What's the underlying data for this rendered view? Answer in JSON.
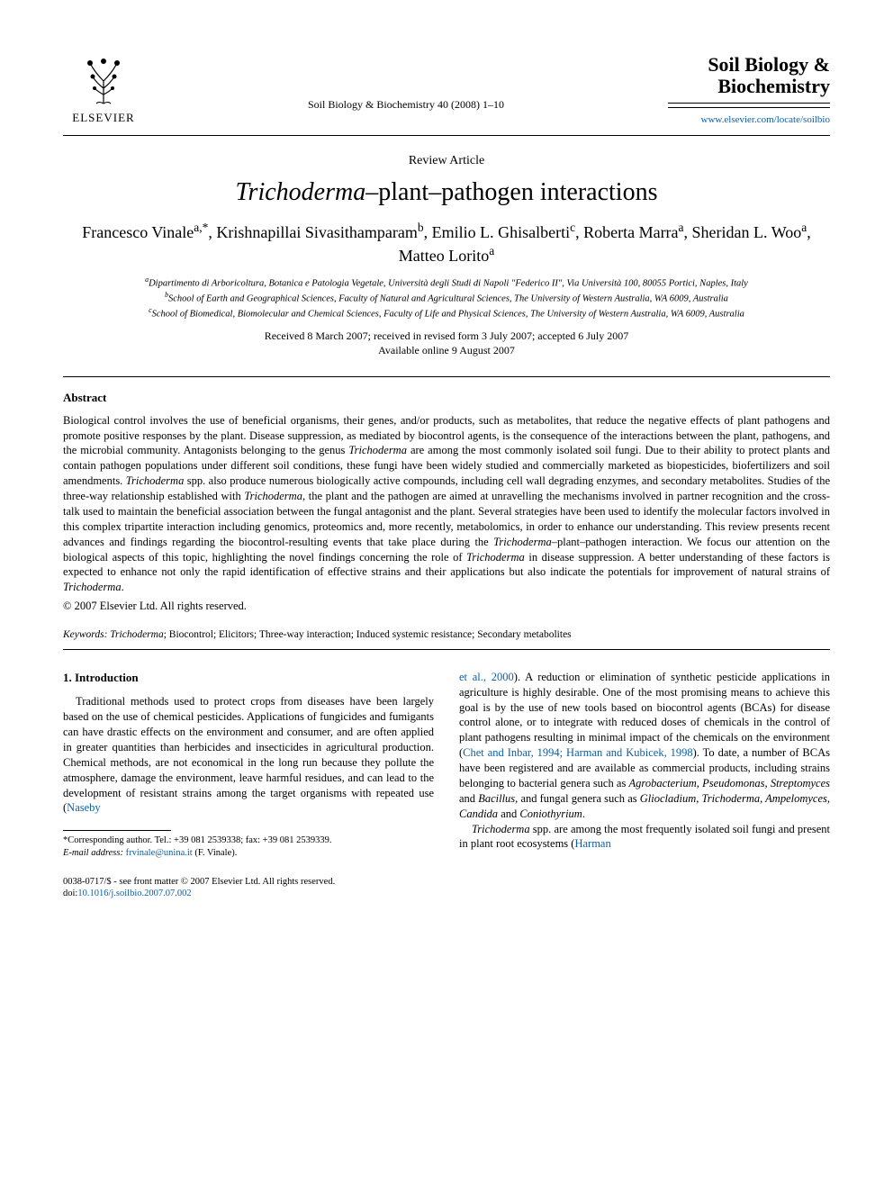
{
  "header": {
    "publisher": "ELSEVIER",
    "journal_ref": "Soil Biology & Biochemistry 40 (2008) 1–10",
    "journal_title_line1": "Soil Biology &",
    "journal_title_line2": "Biochemistry",
    "journal_link": "www.elsevier.com/locate/soilbio"
  },
  "article": {
    "type": "Review Article",
    "title_italic": "Trichoderma",
    "title_rest": "–plant–pathogen interactions",
    "authors_html": "Francesco Vinale<sup>a,*</sup>, Krishnapillai Sivasithamparam<sup>b</sup>, Emilio L. Ghisalberti<sup>c</sup>, Roberta Marra<sup>a</sup>, Sheridan L. Woo<sup>a</sup>, Matteo Lorito<sup>a</sup>",
    "affiliations": [
      "<sup>a</sup>Dipartimento di Arboricoltura, Botanica e Patologia Vegetale, Università degli Studi di Napoli \"Federico II\", Via Università 100, 80055 Portici, Naples, Italy",
      "<sup>b</sup>School of Earth and Geographical Sciences, Faculty of Natural and Agricultural Sciences, The University of Western Australia, WA 6009, Australia",
      "<sup>c</sup>School of Biomedical, Biomolecular and Chemical Sciences, Faculty of Life and Physical Sciences, The University of Western Australia, WA 6009, Australia"
    ],
    "dates_line1": "Received 8 March 2007; received in revised form 3 July 2007; accepted 6 July 2007",
    "dates_line2": "Available online 9 August 2007"
  },
  "abstract": {
    "heading": "Abstract",
    "body": "Biological control involves the use of beneficial organisms, their genes, and/or products, such as metabolites, that reduce the negative effects of plant pathogens and promote positive responses by the plant. Disease suppression, as mediated by biocontrol agents, is the consequence of the interactions between the plant, pathogens, and the microbial community. Antagonists belonging to the genus <span class=\"italic\">Trichoderma</span> are among the most commonly isolated soil fungi. Due to their ability to protect plants and contain pathogen populations under different soil conditions, these fungi have been widely studied and commercially marketed as biopesticides, biofertilizers and soil amendments. <span class=\"italic\">Trichoderma</span> spp. also produce numerous biologically active compounds, including cell wall degrading enzymes, and secondary metabolites. Studies of the three-way relationship established with <span class=\"italic\">Trichoderma</span>, the plant and the pathogen are aimed at unravelling the mechanisms involved in partner recognition and the cross-talk used to maintain the beneficial association between the fungal antagonist and the plant. Several strategies have been used to identify the molecular factors involved in this complex tripartite interaction including genomics, proteomics and, more recently, metabolomics, in order to enhance our understanding. This review presents recent advances and findings regarding the biocontrol-resulting events that take place during the <span class=\"italic\">Trichoderma</span>–plant–pathogen interaction. We focus our attention on the biological aspects of this topic, highlighting the novel findings concerning the role of <span class=\"italic\">Trichoderma</span> in disease suppression. A better understanding of these factors is expected to enhance not only the rapid identification of effective strains and their applications but also indicate the potentials for improvement of natural strains of <span class=\"italic\">Trichoderma</span>.",
    "copyright": "© 2007 Elsevier Ltd. All rights reserved."
  },
  "keywords": {
    "label": "Keywords:",
    "text": " <span class=\"italic\">Trichoderma</span>; Biocontrol; Elicitors; Three-way interaction; Induced systemic resistance; Secondary metabolites"
  },
  "body": {
    "section_heading": "1. Introduction",
    "col1_p1": "Traditional methods used to protect crops from diseases have been largely based on the use of chemical pesticides. Applications of fungicides and fumigants can have drastic effects on the environment and consumer, and are often applied in greater quantities than herbicides and insecticides in agricultural production. Chemical methods, are not economical in the long run because they pollute the atmosphere, damage the environment, leave harmful residues, and can lead to the development of resistant strains among the target organisms with repeated use (<span class=\"cite\">Naseby</span>",
    "col2_p1": "<span class=\"cite\">et al., 2000</span>). A reduction or elimination of synthetic pesticide applications in agriculture is highly desirable. One of the most promising means to achieve this goal is by the use of new tools based on biocontrol agents (BCAs) for disease control alone, or to integrate with reduced doses of chemicals in the control of plant pathogens resulting in minimal impact of the chemicals on the environment (<span class=\"cite\">Chet and Inbar, 1994; Harman and Kubicek, 1998</span>). To date, a number of BCAs have been registered and are available as commercial products, including strains belonging to bacterial genera such as <span class=\"ital\">Agrobacterium, Pseudomonas, Streptomyces</span> and <span class=\"ital\">Bacillus</span>, and fungal genera such as <span class=\"ital\">Gliocladium, Trichoderma, Ampelomyces, Candida</span> and <span class=\"ital\">Coniothyrium</span>.",
    "col2_p2": "<span class=\"ital\">Trichoderma</span> spp. are among the most frequently isolated soil fungi and present in plant root ecosystems (<span class=\"cite\">Harman</span>"
  },
  "footnote": {
    "line1": "*Corresponding author. Tel.: +39 081 2539338; fax: +39 081 2539339.",
    "line2_label": "E-mail address:",
    "line2_email": "frvinale@unina.it",
    "line2_rest": " (F. Vinale)."
  },
  "footer": {
    "issn_line": "0038-0717/$ - see front matter © 2007 Elsevier Ltd. All rights reserved.",
    "doi_prefix": "doi:",
    "doi": "10.1016/j.soilbio.2007.07.002"
  },
  "colors": {
    "link": "#0a5faa",
    "text": "#000000",
    "background": "#ffffff"
  }
}
